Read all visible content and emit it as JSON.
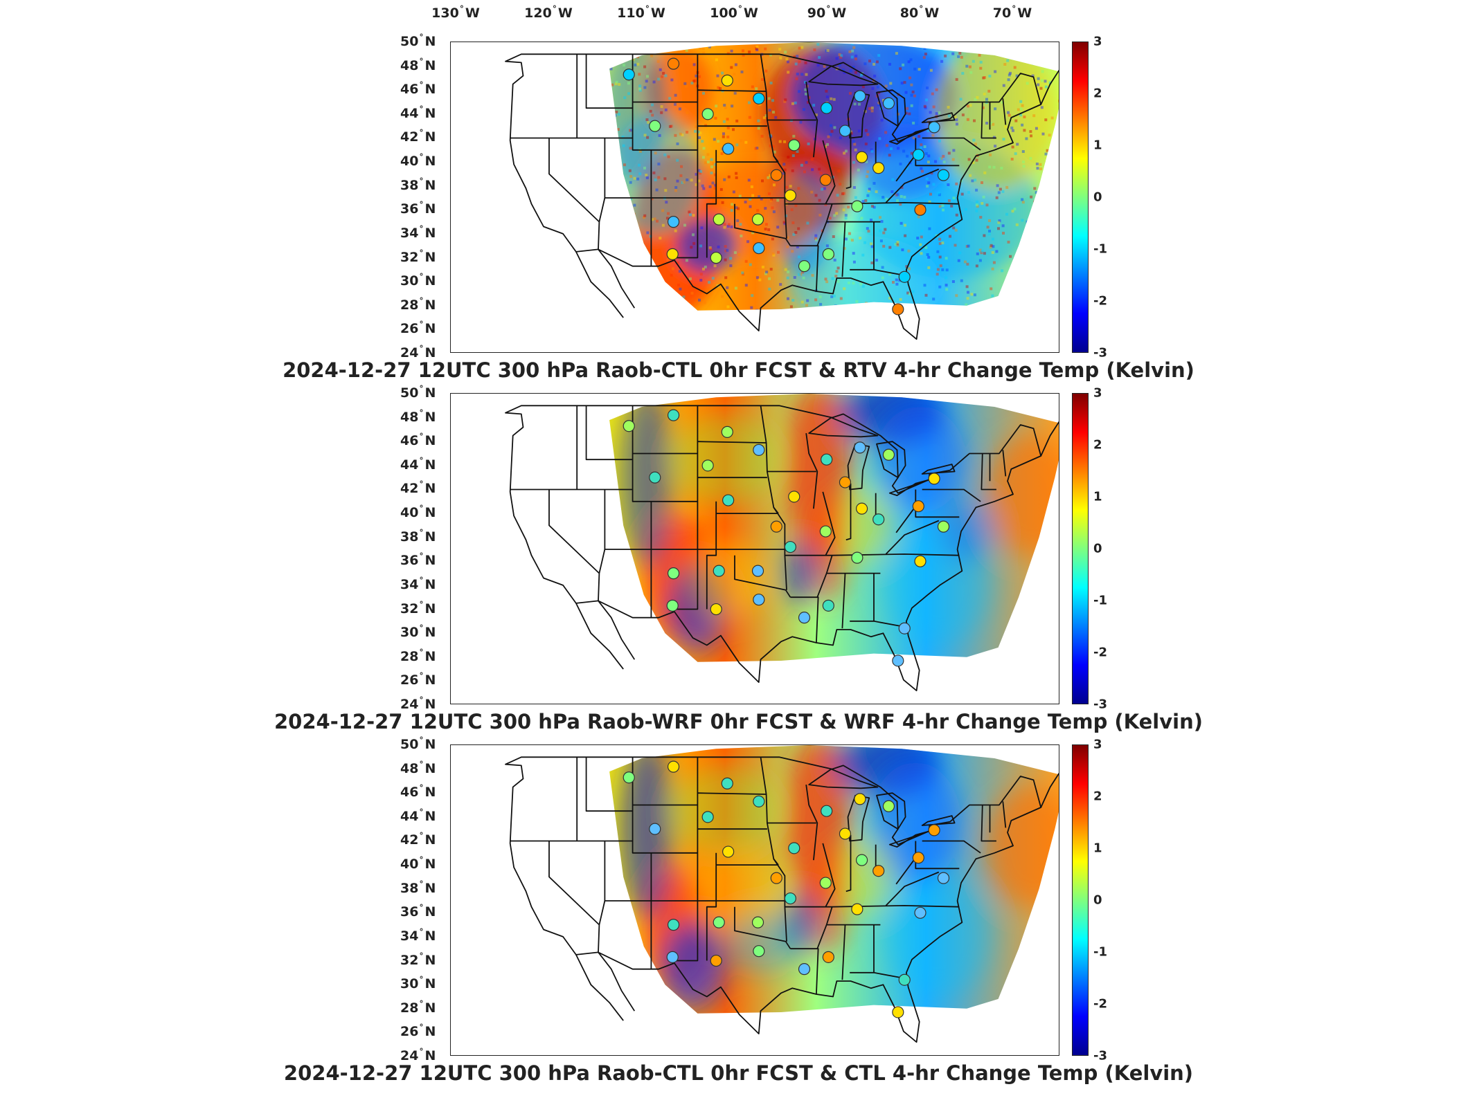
{
  "longitude_labels": [
    {
      "value": "130",
      "dir": "W"
    },
    {
      "value": "120",
      "dir": "W"
    },
    {
      "value": "110",
      "dir": "W"
    },
    {
      "value": "100",
      "dir": "W"
    },
    {
      "value": "90",
      "dir": "W"
    },
    {
      "value": "80",
      "dir": "W"
    },
    {
      "value": "70",
      "dir": "W"
    }
  ],
  "latitude_labels": [
    {
      "value": "50",
      "dir": "N"
    },
    {
      "value": "48",
      "dir": "N"
    },
    {
      "value": "46",
      "dir": "N"
    },
    {
      "value": "44",
      "dir": "N"
    },
    {
      "value": "42",
      "dir": "N"
    },
    {
      "value": "40",
      "dir": "N"
    },
    {
      "value": "38",
      "dir": "N"
    },
    {
      "value": "36",
      "dir": "N"
    },
    {
      "value": "34",
      "dir": "N"
    },
    {
      "value": "32",
      "dir": "N"
    },
    {
      "value": "30",
      "dir": "N"
    },
    {
      "value": "28",
      "dir": "N"
    },
    {
      "value": "26",
      "dir": "N"
    },
    {
      "value": "24",
      "dir": "N"
    }
  ],
  "degree_symbol": "°",
  "colorbar": {
    "ticks": [
      "3",
      "2",
      "1",
      "0",
      "-1",
      "-2",
      "-3"
    ],
    "range": [
      -3,
      3
    ],
    "colormap": "jet",
    "colors": [
      "#00008f",
      "#0000ff",
      "#007fff",
      "#00ffff",
      "#7fff7f",
      "#ffff00",
      "#ff7f00",
      "#ff0000",
      "#7f0000"
    ]
  },
  "panels": [
    {
      "title": "2024-12-27 12UTC 300 hPa Raob-CTL 0hr FCST & RTV 4-hr Change Temp (Kelvin)"
    },
    {
      "title": "2024-12-27 12UTC 300 hPa Raob-WRF 0hr FCST & WRF 4-hr Change Temp (Kelvin)"
    },
    {
      "title": "2024-12-27 12UTC 300 hPa Raob-CTL 0hr FCST & CTL 4-hr Change Temp (Kelvin)"
    }
  ]
}
